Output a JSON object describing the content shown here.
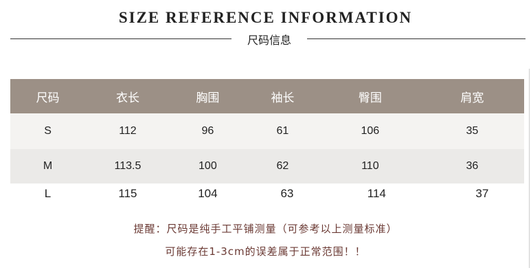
{
  "title": "SIZE REFERENCE INFORMATION",
  "subtitle": "尺码信息",
  "table": {
    "headers": [
      "尺码",
      "衣长",
      "胸围",
      "袖长",
      "臀围",
      "肩宽"
    ],
    "rows": [
      [
        "S",
        "112",
        "96",
        "61",
        "106",
        "35"
      ],
      [
        "M",
        "113.5",
        "100",
        "62",
        "110",
        "36"
      ],
      [
        "L",
        "115",
        "104",
        "63",
        "114",
        "37"
      ]
    ]
  },
  "notes": [
    "提醒：尺码是纯手工平铺测量（可参考以上测量标准）",
    "可能存在1-3cm的误差属于正常范围！！"
  ],
  "colors": {
    "header_bg": "#9c9086",
    "note_text": "#6b3a34"
  }
}
